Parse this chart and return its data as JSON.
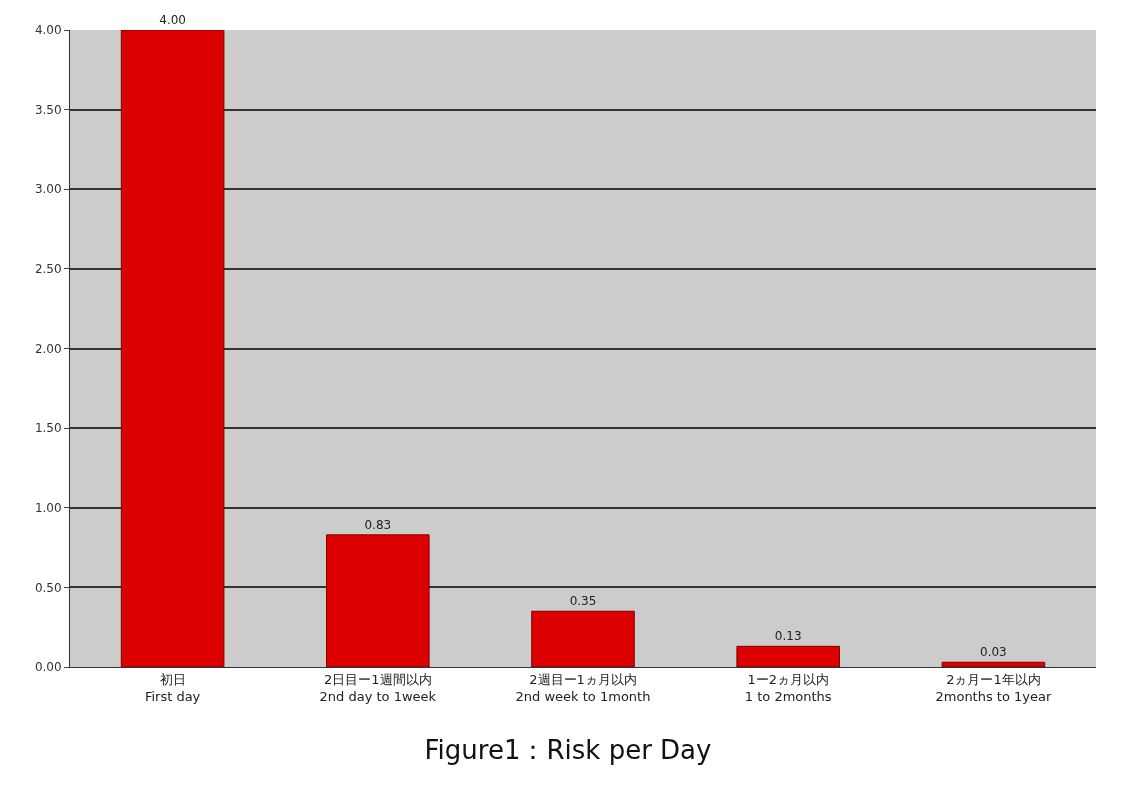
{
  "chart_data": {
    "type": "bar",
    "title": "Figure1：Risk per Day",
    "categories": [
      "初日\nFirst day",
      "2日目ー1週間以内\n2nd day to 1week",
      "2週目ー1ヵ月以内\n2nd week to 1month",
      "1ー2ヵ月以内\n1 to 2months",
      "2ヵ月ー1年以内\n2months to 1year"
    ],
    "values": [
      4.0,
      0.83,
      0.35,
      0.13,
      0.03
    ],
    "value_labels": [
      "4.00",
      "0.83",
      "0.35",
      "0.13",
      "0.03"
    ],
    "color": "#dd0000",
    "ylim": [
      0,
      4
    ],
    "yticks": [
      {
        "value": 0,
        "label": "0.00"
      },
      {
        "value": 0.5,
        "label": "0.50"
      },
      {
        "value": 1,
        "label": "1.00"
      },
      {
        "value": 1.5,
        "label": "1.50"
      },
      {
        "value": 2,
        "label": "2.00"
      },
      {
        "value": 2.5,
        "label": "2.50"
      },
      {
        "value": 3,
        "label": "3.00"
      },
      {
        "value": 3.5,
        "label": "3.50"
      },
      {
        "value": 4,
        "label": "4.00"
      }
    ],
    "grid": "y"
  }
}
